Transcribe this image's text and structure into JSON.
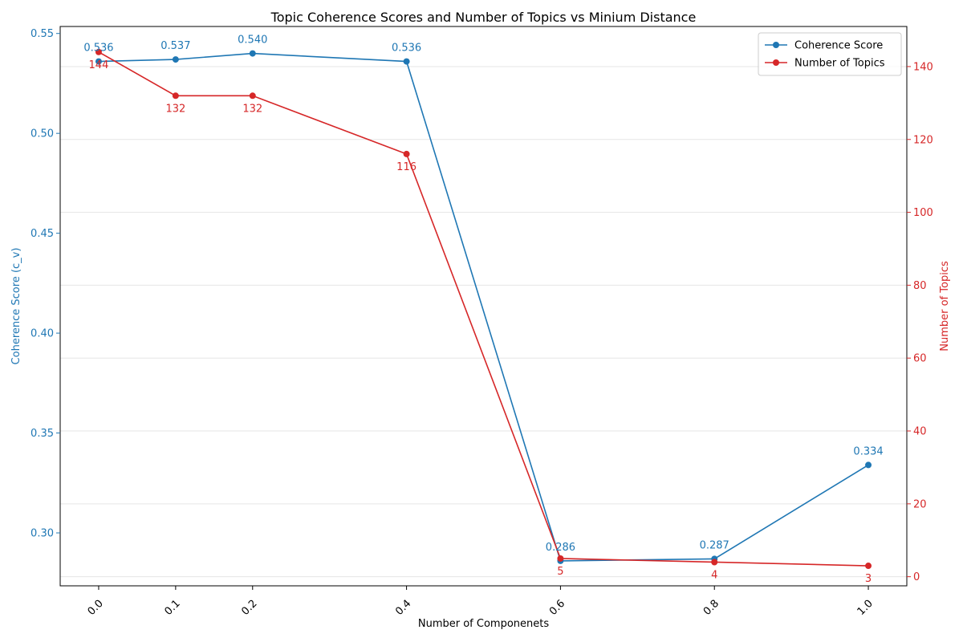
{
  "chart_data": {
    "type": "line",
    "title": "Topic Coherence Scores and Number of Topics vs Minium Distance",
    "xlabel": "Number of Componenets",
    "ylabel_left": "Coherence Score (c_v)",
    "ylabel_right": "Number of Topics",
    "x": [
      0.0,
      0.1,
      0.2,
      0.4,
      0.6,
      0.8,
      1.0
    ],
    "x_tick_labels": [
      "0.0",
      "0.1",
      "0.2",
      "0.4",
      "0.6",
      "0.8",
      "1.0"
    ],
    "xlim": [
      -0.05,
      1.05
    ],
    "ylim_left": [
      0.2735,
      0.5535
    ],
    "ylim_right": [
      -2.5,
      151
    ],
    "y_ticks_left": [
      "0.30",
      "0.35",
      "0.40",
      "0.45",
      "0.50",
      "0.55"
    ],
    "y_ticks_right": [
      "0",
      "20",
      "40",
      "60",
      "80",
      "100",
      "120",
      "140"
    ],
    "grid": true,
    "legend_position": "upper right",
    "series": [
      {
        "name": "Coherence Score",
        "axis": "left",
        "color": "#1f77b4",
        "values": [
          0.536,
          0.537,
          0.54,
          0.536,
          0.286,
          0.287,
          0.334
        ],
        "labels": [
          "0.536",
          "0.537",
          "0.540",
          "0.536",
          "0.286",
          "0.287",
          "0.334"
        ]
      },
      {
        "name": "Number of Topics",
        "axis": "right",
        "color": "#d62728",
        "values": [
          144,
          132,
          132,
          116,
          5,
          4,
          3
        ],
        "labels": [
          "144",
          "132",
          "132",
          "116",
          "5",
          "4",
          "3"
        ]
      }
    ]
  }
}
